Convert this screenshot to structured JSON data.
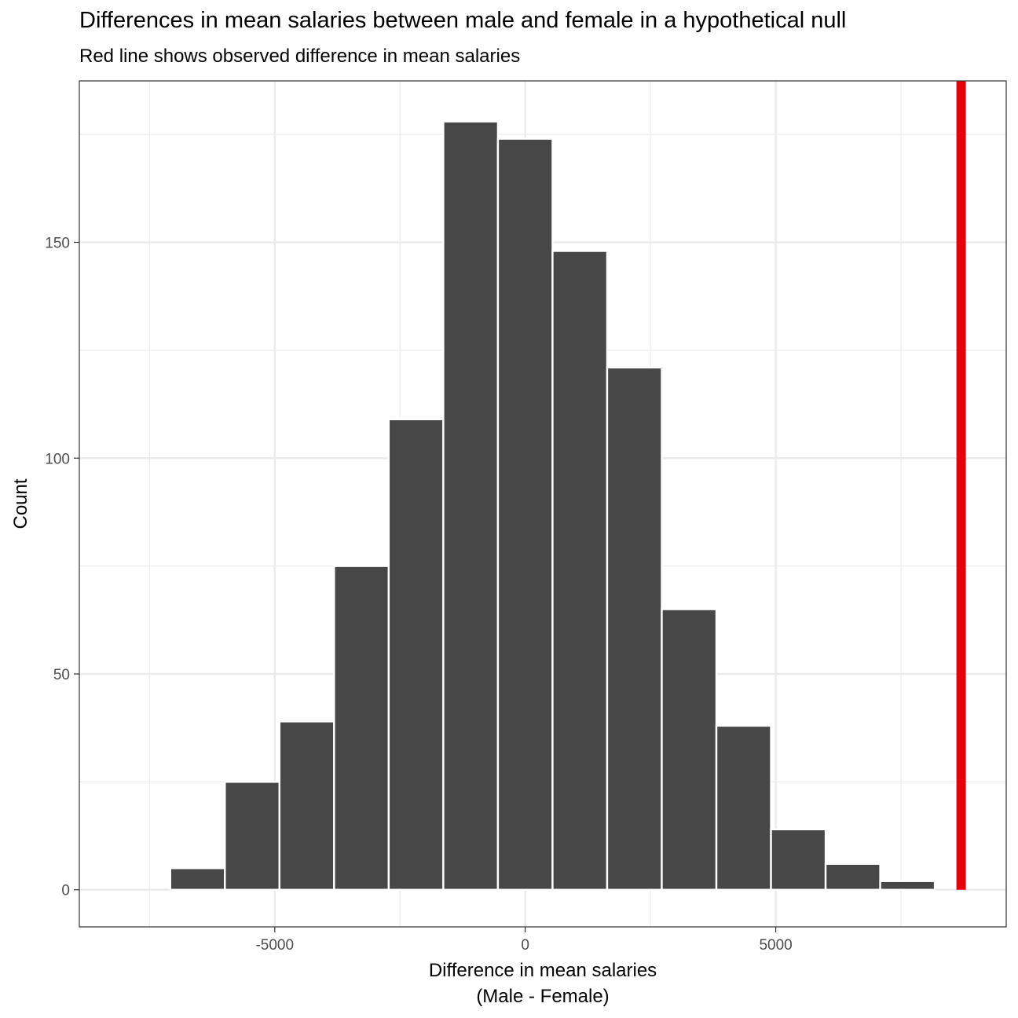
{
  "title": "Differences in mean salaries between male and female in a hypothetical null",
  "subtitle": "Red line shows observed difference in mean salaries",
  "chart_data": {
    "type": "bar",
    "title": "Differences in mean salaries between male and female in a hypothetical null",
    "subtitle": "Red line shows observed difference in mean salaries",
    "xlabel": [
      "Difference in mean salaries",
      "(Male - Female)"
    ],
    "ylabel": "Count",
    "xlim": [
      -8900,
      9600
    ],
    "ylim": [
      -8.6,
      187.4
    ],
    "x_ticks": [
      -5000,
      0,
      5000
    ],
    "x_tick_labels": [
      "-5000",
      "0",
      "5000"
    ],
    "y_ticks": [
      0,
      50,
      100,
      150
    ],
    "y_tick_labels": [
      "0",
      "50",
      "100",
      "150"
    ],
    "grid": true,
    "bin_width": 1090,
    "bins": [
      {
        "x": -7630,
        "count": 0
      },
      {
        "x": -6540,
        "count": 5
      },
      {
        "x": -5450,
        "count": 25
      },
      {
        "x": -4360,
        "count": 39
      },
      {
        "x": -3270,
        "count": 75
      },
      {
        "x": -2180,
        "count": 109
      },
      {
        "x": -1090,
        "count": 178
      },
      {
        "x": 0,
        "count": 174
      },
      {
        "x": 1090,
        "count": 148
      },
      {
        "x": 2180,
        "count": 121
      },
      {
        "x": 3270,
        "count": 65
      },
      {
        "x": 4360,
        "count": 38
      },
      {
        "x": 5450,
        "count": 14
      },
      {
        "x": 6540,
        "count": 6
      },
      {
        "x": 7630,
        "count": 2
      }
    ],
    "observed_difference": 8700,
    "colors": {
      "bars": "#474747",
      "bar_outline": "#ffffff",
      "observed_line": "#e8000b",
      "grid": "#ebebeb",
      "panel_border": "#333333"
    }
  }
}
